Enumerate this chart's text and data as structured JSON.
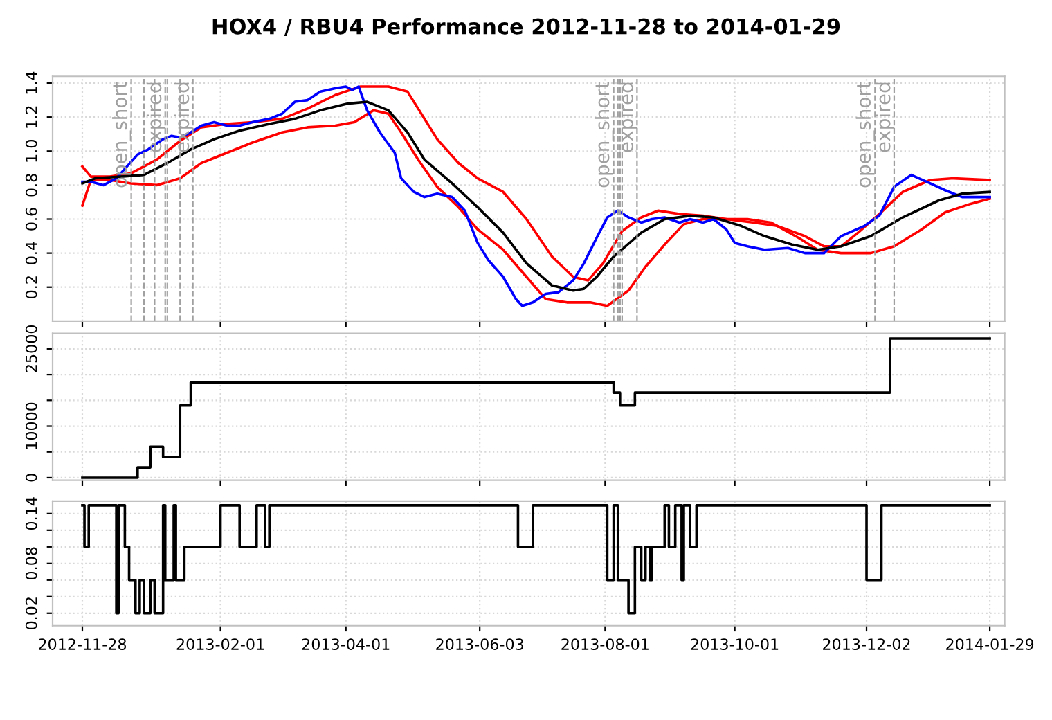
{
  "chart_data": [
    {
      "type": "line",
      "title": "HOX4 / RBU4 Performance 2012-11-28 to 2014-01-29",
      "xlim": [
        "2012-11-14",
        "2014-02-05"
      ],
      "ylim": [
        0.0,
        1.44
      ],
      "yticks": [
        0.2,
        0.4,
        0.6,
        0.8,
        {
          "value": 1.0,
          "label": "1.0"
        },
        1.2,
        1.4
      ],
      "xticks": [
        {
          "value": "2012-11-28",
          "label": null
        },
        {
          "value": "2013-02-01",
          "label": null
        },
        {
          "value": "2013-04-01",
          "label": null
        },
        {
          "value": "2013-06-03",
          "label": null
        },
        {
          "value": "2013-08-01",
          "label": null
        },
        {
          "value": "2013-10-01",
          "label": null
        },
        {
          "value": "2013-12-02",
          "label": null
        },
        {
          "value": "2014-01-29",
          "label": null
        }
      ],
      "tick_labels": "y",
      "grid": true,
      "series": [
        {
          "color": "#ff0000",
          "x": [
            "2012-11-28",
            "2012-12-02",
            "2012-12-11",
            "2012-12-21",
            "2013-01-02",
            "2013-01-13",
            "2013-01-23",
            "2013-02-04",
            "2013-02-16",
            "2013-03-02",
            "2013-03-14",
            "2013-03-27",
            "2013-04-08",
            "2013-04-21",
            "2013-04-30",
            "2013-05-05",
            "2013-05-14",
            "2013-05-24",
            "2013-06-02",
            "2013-06-14",
            "2013-06-25",
            "2013-07-07",
            "2013-07-17",
            "2013-07-24",
            "2013-07-31",
            "2013-08-09",
            "2013-08-18",
            "2013-08-26",
            "2013-09-05",
            "2013-09-16",
            "2013-09-27",
            "2013-10-10",
            "2013-10-21",
            "2013-11-03",
            "2013-11-12",
            "2013-11-20",
            "2013-11-28",
            "2013-12-08",
            "2013-12-19",
            "2014-01-01",
            "2014-01-12",
            "2014-01-29"
          ],
          "values": [
            0.91,
            0.85,
            0.85,
            0.87,
            0.95,
            1.06,
            1.14,
            1.16,
            1.17,
            1.19,
            1.25,
            1.33,
            1.38,
            1.38,
            1.35,
            1.25,
            1.07,
            0.93,
            0.84,
            0.76,
            0.6,
            0.38,
            0.26,
            0.24,
            0.34,
            0.53,
            0.61,
            0.65,
            0.63,
            0.62,
            0.6,
            0.58,
            0.56,
            0.5,
            0.44,
            0.44,
            0.52,
            0.63,
            0.76,
            0.83,
            0.84,
            0.83
          ]
        },
        {
          "color": "#ff0000",
          "x": [
            "2012-11-28",
            "2012-12-02",
            "2012-12-11",
            "2012-12-21",
            "2013-01-02",
            "2013-01-13",
            "2013-01-23",
            "2013-02-04",
            "2013-02-16",
            "2013-03-02",
            "2013-03-14",
            "2013-03-27",
            "2013-04-05",
            "2013-04-14",
            "2013-04-21",
            "2013-04-27",
            "2013-05-05",
            "2013-05-14",
            "2013-05-24",
            "2013-06-02",
            "2013-06-14",
            "2013-06-25",
            "2013-07-04",
            "2013-07-14",
            "2013-07-25",
            "2013-08-02",
            "2013-08-12",
            "2013-08-20",
            "2013-08-29",
            "2013-09-07",
            "2013-09-16",
            "2013-09-24",
            "2013-10-07",
            "2013-10-18",
            "2013-10-31",
            "2013-11-09",
            "2013-11-20",
            "2013-12-04",
            "2013-12-15",
            "2013-12-28",
            "2014-01-08",
            "2014-01-20",
            "2014-01-29"
          ],
          "values": [
            0.68,
            0.83,
            0.83,
            0.81,
            0.8,
            0.84,
            0.93,
            0.99,
            1.05,
            1.11,
            1.14,
            1.15,
            1.17,
            1.24,
            1.22,
            1.11,
            0.95,
            0.79,
            0.67,
            0.54,
            0.42,
            0.26,
            0.13,
            0.11,
            0.11,
            0.09,
            0.18,
            0.32,
            0.45,
            0.57,
            0.6,
            0.6,
            0.6,
            0.58,
            0.49,
            0.42,
            0.4,
            0.4,
            0.44,
            0.54,
            0.64,
            0.69,
            0.72
          ]
        },
        {
          "color": "#0000ff",
          "x": [
            "2012-11-28",
            "2012-12-02",
            "2012-12-08",
            "2012-12-14",
            "2012-12-19",
            "2012-12-24",
            "2012-12-29",
            "2013-01-05",
            "2013-01-09",
            "2013-01-13",
            "2013-01-18",
            "2013-01-23",
            "2013-01-29",
            "2013-02-04",
            "2013-02-10",
            "2013-02-16",
            "2013-02-24",
            "2013-03-02",
            "2013-03-08",
            "2013-03-14",
            "2013-03-20",
            "2013-03-27",
            "2013-04-01",
            "2013-04-04",
            "2013-04-07",
            "2013-04-11",
            "2013-04-17",
            "2013-04-24",
            "2013-04-27",
            "2013-05-03",
            "2013-05-08",
            "2013-05-14",
            "2013-05-21",
            "2013-05-27",
            "2013-06-02",
            "2013-06-07",
            "2013-06-14",
            "2013-06-20",
            "2013-06-23",
            "2013-06-28",
            "2013-07-04",
            "2013-07-10",
            "2013-07-17",
            "2013-07-22",
            "2013-07-28",
            "2013-08-02",
            "2013-08-07",
            "2013-08-12",
            "2013-08-18",
            "2013-08-23",
            "2013-08-29",
            "2013-09-05",
            "2013-09-10",
            "2013-09-16",
            "2013-09-21",
            "2013-09-27",
            "2013-10-01",
            "2013-10-07",
            "2013-10-15",
            "2013-10-26",
            "2013-11-03",
            "2013-11-12",
            "2013-11-20",
            "2013-12-01",
            "2013-12-08",
            "2013-12-15",
            "2013-12-23",
            "2014-01-01",
            "2014-01-08",
            "2014-01-16",
            "2014-01-29"
          ],
          "values": [
            0.82,
            0.82,
            0.8,
            0.84,
            0.91,
            0.98,
            1.01,
            1.07,
            1.09,
            1.08,
            1.11,
            1.15,
            1.17,
            1.15,
            1.15,
            1.17,
            1.19,
            1.22,
            1.29,
            1.3,
            1.35,
            1.37,
            1.38,
            1.36,
            1.38,
            1.24,
            1.11,
            0.99,
            0.84,
            0.76,
            0.73,
            0.75,
            0.73,
            0.65,
            0.46,
            0.36,
            0.26,
            0.13,
            0.09,
            0.11,
            0.16,
            0.17,
            0.24,
            0.34,
            0.49,
            0.61,
            0.65,
            0.61,
            0.58,
            0.6,
            0.61,
            0.58,
            0.6,
            0.58,
            0.6,
            0.54,
            0.46,
            0.44,
            0.42,
            0.43,
            0.4,
            0.4,
            0.5,
            0.56,
            0.62,
            0.79,
            0.86,
            0.81,
            0.77,
            0.73,
            0.73
          ]
        },
        {
          "color": "#000000",
          "x": [
            "2012-11-28",
            "2012-12-04",
            "2012-12-16",
            "2012-12-27",
            "2013-01-07",
            "2013-01-18",
            "2013-01-29",
            "2013-02-10",
            "2013-02-24",
            "2013-03-08",
            "2013-03-20",
            "2013-04-02",
            "2013-04-11",
            "2013-04-21",
            "2013-04-30",
            "2013-05-08",
            "2013-05-21",
            "2013-06-02",
            "2013-06-14",
            "2013-06-25",
            "2013-07-07",
            "2013-07-17",
            "2013-07-22",
            "2013-07-28",
            "2013-08-05",
            "2013-08-18",
            "2013-08-29",
            "2013-09-10",
            "2013-09-21",
            "2013-10-04",
            "2013-10-15",
            "2013-10-28",
            "2013-11-09",
            "2013-11-20",
            "2013-12-04",
            "2013-12-19",
            "2014-01-05",
            "2014-01-16",
            "2014-01-29"
          ],
          "values": [
            0.81,
            0.84,
            0.85,
            0.86,
            0.93,
            1.01,
            1.07,
            1.12,
            1.16,
            1.19,
            1.24,
            1.28,
            1.29,
            1.24,
            1.11,
            0.95,
            0.81,
            0.67,
            0.52,
            0.34,
            0.21,
            0.18,
            0.19,
            0.26,
            0.38,
            0.52,
            0.6,
            0.62,
            0.61,
            0.56,
            0.5,
            0.45,
            0.42,
            0.44,
            0.5,
            0.61,
            0.71,
            0.75,
            0.76
          ]
        }
      ],
      "ref_lines": [
        {
          "axis": "x",
          "value": "2012-12-21",
          "label": "open_short",
          "color": "#a0a0a0",
          "line_style": "dashed"
        },
        {
          "axis": "x",
          "value": "2012-12-27",
          "color": "#a0a0a0",
          "line_style": "dashed"
        },
        {
          "axis": "x",
          "value": "2013-01-01",
          "color": "#a0a0a0",
          "line_style": "dashed"
        },
        {
          "axis": "x",
          "value": "2013-01-06",
          "label": "expired",
          "color": "#a0a0a0",
          "line_style": "dashed"
        },
        {
          "axis": "x",
          "value": "2013-01-07",
          "color": "#a0a0a0",
          "line_style": "dashed"
        },
        {
          "axis": "x",
          "value": "2013-01-13",
          "color": "#a0a0a0",
          "line_style": "dashed"
        },
        {
          "axis": "x",
          "value": "2013-01-19",
          "label": "expired",
          "color": "#a0a0a0",
          "line_style": "dashed"
        },
        {
          "axis": "x",
          "value": "2013-08-05",
          "label": "open_short",
          "color": "#a0a0a0",
          "line_style": "dashed"
        },
        {
          "axis": "x",
          "value": "2013-08-07",
          "color": "#a0a0a0",
          "line_style": "dashed"
        },
        {
          "axis": "x",
          "value": "2013-08-08",
          "color": "#a0a0a0",
          "line_style": "dashed"
        },
        {
          "axis": "x",
          "value": "2013-08-09",
          "color": "#a0a0a0",
          "line_style": "dashed"
        },
        {
          "axis": "x",
          "value": "2013-08-16",
          "label": "expired",
          "color": "#a0a0a0",
          "line_style": "dashed"
        },
        {
          "axis": "x",
          "value": "2013-12-06",
          "label": "open_short",
          "color": "#a0a0a0",
          "line_style": "dashed"
        },
        {
          "axis": "x",
          "value": "2013-12-15",
          "label": "expired",
          "color": "#a0a0a0",
          "line_style": "dashed"
        }
      ]
    },
    {
      "type": "step",
      "xlim": [
        "2012-11-14",
        "2014-02-05"
      ],
      "ylim": [
        -500,
        28000
      ],
      "yticks": [
        0,
        {
          "value": 5000,
          "label": null
        },
        10000,
        {
          "value": 15000,
          "label": null
        },
        {
          "value": 20000,
          "label": null
        },
        25000
      ],
      "xticks": [
        {
          "value": "2012-11-28",
          "label": null
        },
        {
          "value": "2013-02-01",
          "label": null
        },
        {
          "value": "2013-04-01",
          "label": null
        },
        {
          "value": "2013-06-03",
          "label": null
        },
        {
          "value": "2013-08-01",
          "label": null
        },
        {
          "value": "2013-10-01",
          "label": null
        },
        {
          "value": "2013-12-02",
          "label": null
        },
        {
          "value": "2014-01-29",
          "label": null
        }
      ],
      "tick_labels": "y",
      "grid": true,
      "series": [
        {
          "color": "#000000",
          "x": [
            "2012-11-28",
            "2012-12-24",
            "2012-12-30",
            "2013-01-05",
            "2013-01-13",
            "2013-01-18",
            "2013-08-05",
            "2013-08-08",
            "2013-08-15",
            "2013-12-13",
            "2014-01-29"
          ],
          "values": [
            0,
            2000,
            6000,
            4000,
            14000,
            18500,
            16500,
            14000,
            16500,
            27000,
            27000
          ]
        }
      ]
    },
    {
      "type": "step",
      "xlim": [
        "2012-11-14",
        "2014-02-05"
      ],
      "ylim": [
        0.005,
        0.155
      ],
      "yticks": [
        0.02,
        {
          "value": 0.04,
          "label": null
        },
        {
          "value": 0.06,
          "label": null
        },
        0.08,
        {
          "value": 0.1,
          "label": null
        },
        {
          "value": 0.12,
          "label": null
        },
        0.14
      ],
      "xticks": [
        "2012-11-28",
        "2013-02-01",
        "2013-04-01",
        "2013-06-03",
        "2013-08-01",
        "2013-10-01",
        "2013-12-02",
        "2014-01-29"
      ],
      "grid": true,
      "series": [
        {
          "color": "#000000",
          "x": [
            "2012-11-28",
            "2012-11-29",
            "2012-12-01",
            "2012-12-14",
            "2012-12-15",
            "2012-12-18",
            "2012-12-20",
            "2012-12-23",
            "2012-12-25",
            "2012-12-27",
            "2012-12-30",
            "2013-01-01",
            "2013-01-05",
            "2013-01-06",
            "2013-01-10",
            "2013-01-11",
            "2013-01-15",
            "2013-02-01",
            "2013-02-10",
            "2013-02-18",
            "2013-02-22",
            "2013-02-24",
            "2013-06-21",
            "2013-06-28",
            "2013-08-02",
            "2013-08-05",
            "2013-08-07",
            "2013-08-12",
            "2013-08-15",
            "2013-08-18",
            "2013-08-20",
            "2013-08-22",
            "2013-08-23",
            "2013-08-29",
            "2013-08-31",
            "2013-09-03",
            "2013-09-06",
            "2013-09-07",
            "2013-09-10",
            "2013-09-13",
            "2013-12-02",
            "2013-12-09",
            "2014-01-29"
          ],
          "values": [
            0.15,
            0.1,
            0.15,
            0.02,
            0.15,
            0.1,
            0.06,
            0.02,
            0.06,
            0.02,
            0.06,
            0.02,
            0.15,
            0.06,
            0.15,
            0.06,
            0.1,
            0.15,
            0.1,
            0.15,
            0.1,
            0.15,
            0.1,
            0.15,
            0.06,
            0.15,
            0.06,
            0.02,
            0.1,
            0.06,
            0.1,
            0.06,
            0.1,
            0.15,
            0.1,
            0.15,
            0.06,
            0.15,
            0.1,
            0.15,
            0.06,
            0.15,
            0.15
          ]
        }
      ]
    }
  ]
}
